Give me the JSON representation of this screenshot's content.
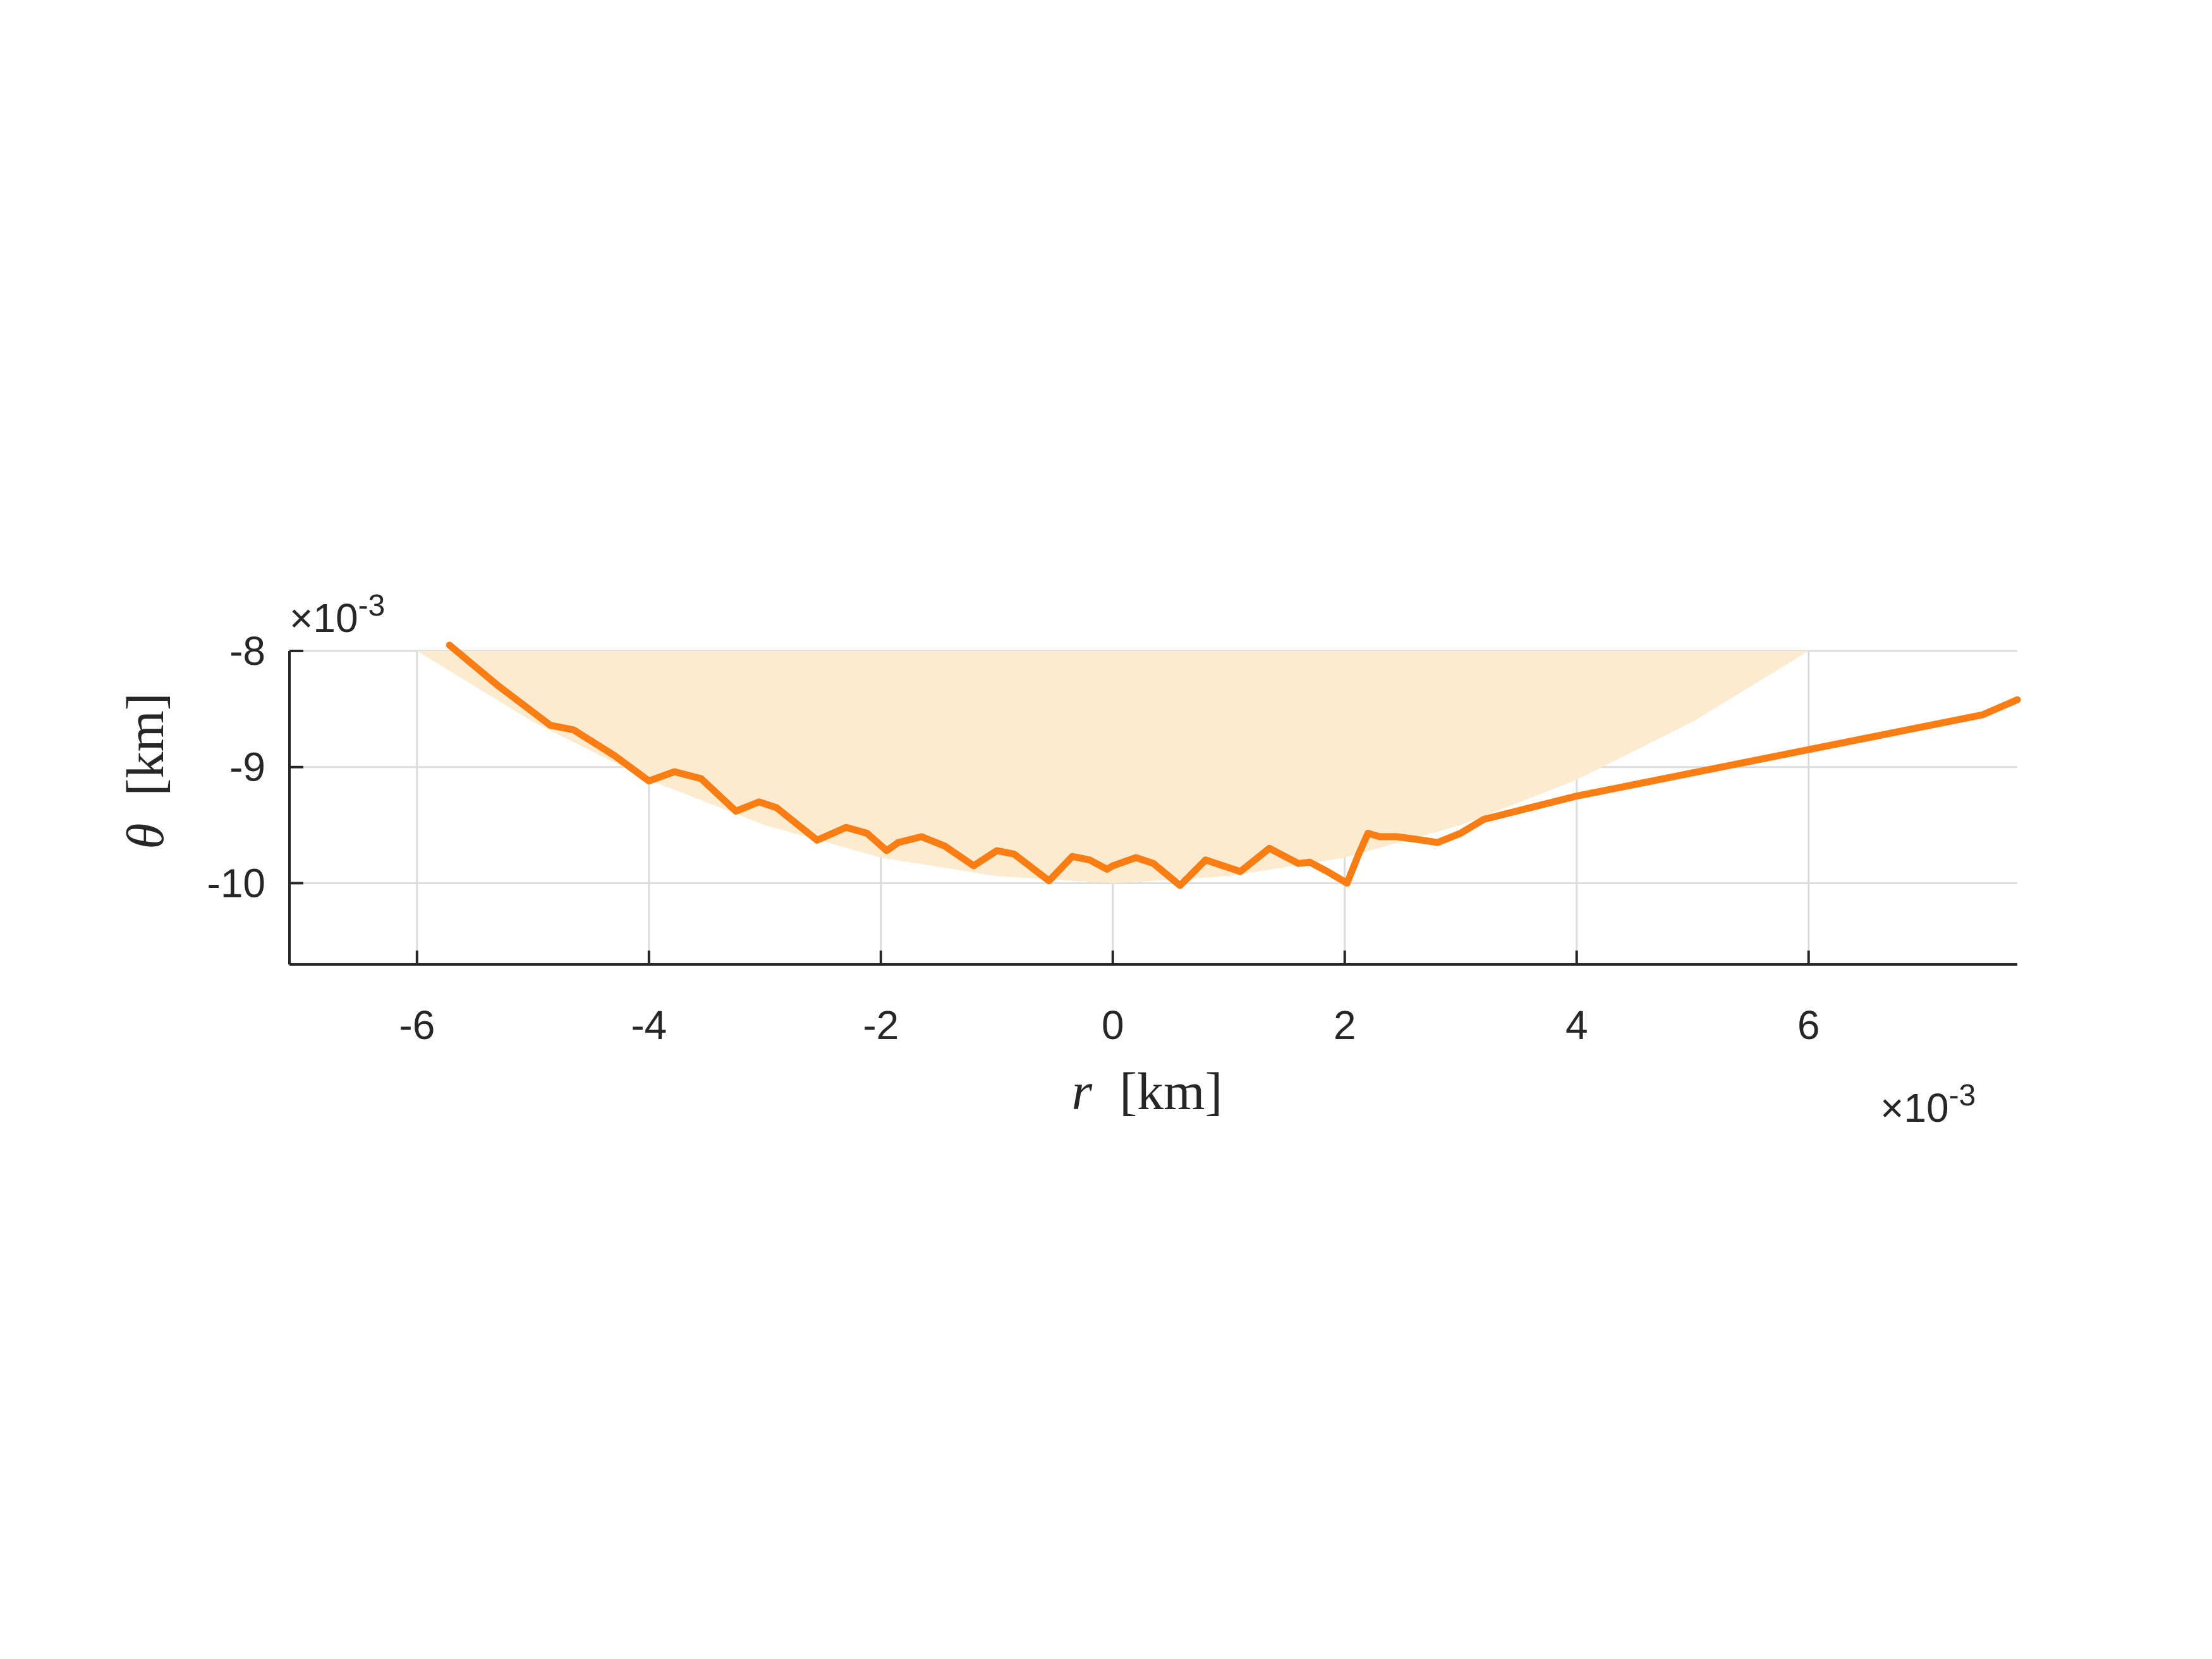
{
  "chart_data": {
    "type": "line",
    "xlabel_symbol": "r",
    "xlabel_unit": "[km]",
    "ylabel_symbol": "θ",
    "ylabel_unit": "[km]",
    "x_exponent_base": "×10",
    "x_exponent_power": "-3",
    "y_exponent_base": "×10",
    "y_exponent_power": "-3",
    "xlim": [
      -7.1,
      7.8
    ],
    "ylim": [
      -10.7,
      -8.0
    ],
    "xticks": [
      -6,
      -4,
      -2,
      0,
      2,
      4,
      6
    ],
    "xtick_labels": [
      "-6",
      "-4",
      "-2",
      "0",
      "2",
      "4",
      "6"
    ],
    "yticks": [
      -8,
      -9,
      -10
    ],
    "ytick_labels": [
      "-8",
      "-9",
      "-10"
    ],
    "grid": true,
    "colors": {
      "line": "#f97d12",
      "band": "#fdebcf",
      "grid": "#dcdcdc",
      "axis": "#262626"
    },
    "band": {
      "description_free": true,
      "x": [
        -6.0,
        -5.0,
        -4.0,
        -3.0,
        -2.0,
        -1.0,
        0.0,
        1.0,
        2.0,
        3.0,
        4.0,
        5.0,
        6.0
      ],
      "lower": [
        -8.0,
        -8.61,
        -9.11,
        -9.5,
        -9.78,
        -9.94,
        -10.0,
        -9.94,
        -9.78,
        -9.5,
        -9.11,
        -8.61,
        -8.0
      ],
      "upper": [
        -8.0,
        -8.0,
        -8.0,
        -8.0,
        -8.0,
        -8.0,
        -8.0,
        -8.0,
        -8.0,
        -8.0,
        -8.0,
        -8.0,
        -8.0
      ]
    },
    "series": [
      {
        "x": [
          -5.72,
          -5.3,
          -4.85,
          -4.65,
          -4.3,
          -4.0,
          -3.78,
          -3.55,
          -3.25,
          -3.05,
          -2.9,
          -2.55,
          -2.3,
          -2.12,
          -1.95,
          -1.85,
          -1.65,
          -1.45,
          -1.2,
          -1.0,
          -0.85,
          -0.55,
          -0.35,
          -0.2,
          -0.05,
          0.0,
          0.2,
          0.35,
          0.58,
          0.8,
          0.95,
          1.1,
          1.35,
          1.6,
          1.7,
          1.85,
          2.02,
          2.12,
          2.2,
          2.3,
          2.45,
          2.6,
          2.8,
          3.0,
          3.2,
          3.6,
          4.0,
          4.5,
          5.0,
          5.5,
          6.0,
          6.5,
          7.0,
          7.5,
          7.8
        ],
        "y": [
          -7.95,
          -8.3,
          -8.64,
          -8.68,
          -8.9,
          -9.12,
          -9.04,
          -9.1,
          -9.38,
          -9.3,
          -9.35,
          -9.63,
          -9.52,
          -9.57,
          -9.72,
          -9.65,
          -9.6,
          -9.68,
          -9.85,
          -9.72,
          -9.75,
          -9.98,
          -9.77,
          -9.8,
          -9.88,
          -9.85,
          -9.78,
          -9.83,
          -10.02,
          -9.8,
          -9.85,
          -9.9,
          -9.7,
          -9.83,
          -9.82,
          -9.9,
          -10.0,
          -9.75,
          -9.57,
          -9.6,
          -9.6,
          -9.62,
          -9.65,
          -9.57,
          -9.45,
          -9.35,
          -9.25,
          -9.15,
          -9.05,
          -8.95,
          -8.85,
          -8.75,
          -8.65,
          -8.55,
          -8.42
        ]
      }
    ]
  }
}
